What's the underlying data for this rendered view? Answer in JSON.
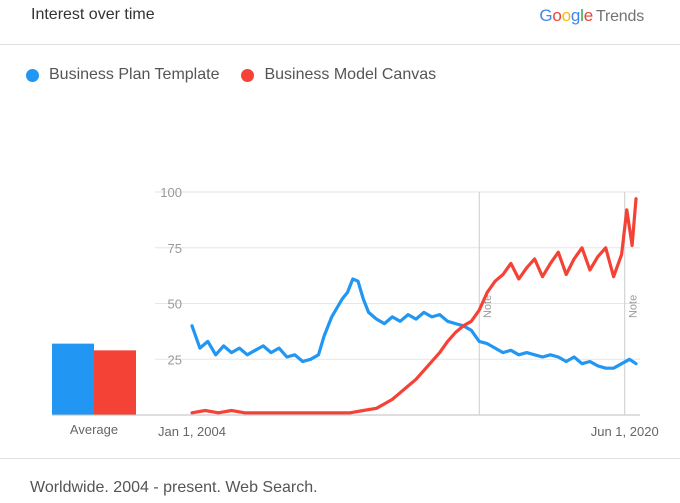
{
  "header": {
    "title": "Interest over time",
    "brand_google": "Google",
    "brand_trends": "Trends",
    "google_colors": [
      "#4285F4",
      "#EA4335",
      "#FBBC05",
      "#4285F4",
      "#34A853",
      "#EA4335"
    ]
  },
  "footer": {
    "text": "Worldwide. 2004 - present. Web Search."
  },
  "chart_data": {
    "type": "line",
    "title": "Interest over time",
    "ylim": [
      0,
      100
    ],
    "y_ticks": [
      25,
      50,
      75,
      100
    ],
    "x_tick_labels": [
      {
        "x": 2004.0,
        "label": "Jan 1, 2004"
      },
      {
        "x": 2020.42,
        "label": "Jun 1, 2020"
      }
    ],
    "xlim": [
      2004.0,
      2021.0
    ],
    "notes": [
      {
        "x": 2014.9,
        "label": "Note"
      },
      {
        "x": 2020.42,
        "label": "Note"
      }
    ],
    "grid": true,
    "legend_position": "top-left",
    "series": [
      {
        "name": "Business Plan Template",
        "color": "#2196F3",
        "points": [
          [
            2004.0,
            40
          ],
          [
            2004.3,
            30
          ],
          [
            2004.6,
            33
          ],
          [
            2004.9,
            27
          ],
          [
            2005.2,
            31
          ],
          [
            2005.5,
            28
          ],
          [
            2005.8,
            30
          ],
          [
            2006.1,
            27
          ],
          [
            2006.4,
            29
          ],
          [
            2006.7,
            31
          ],
          [
            2007.0,
            28
          ],
          [
            2007.3,
            30
          ],
          [
            2007.6,
            26
          ],
          [
            2007.9,
            27
          ],
          [
            2008.2,
            24
          ],
          [
            2008.5,
            25
          ],
          [
            2008.8,
            27
          ],
          [
            2009.0,
            35
          ],
          [
            2009.3,
            44
          ],
          [
            2009.5,
            48
          ],
          [
            2009.7,
            52
          ],
          [
            2009.9,
            55
          ],
          [
            2010.1,
            61
          ],
          [
            2010.3,
            60
          ],
          [
            2010.5,
            52
          ],
          [
            2010.7,
            46
          ],
          [
            2011.0,
            43
          ],
          [
            2011.3,
            41
          ],
          [
            2011.6,
            44
          ],
          [
            2011.9,
            42
          ],
          [
            2012.2,
            45
          ],
          [
            2012.5,
            43
          ],
          [
            2012.8,
            46
          ],
          [
            2013.1,
            44
          ],
          [
            2013.4,
            45
          ],
          [
            2013.7,
            42
          ],
          [
            2014.0,
            41
          ],
          [
            2014.3,
            40
          ],
          [
            2014.6,
            38
          ],
          [
            2014.9,
            33
          ],
          [
            2015.2,
            32
          ],
          [
            2015.5,
            30
          ],
          [
            2015.8,
            28
          ],
          [
            2016.1,
            29
          ],
          [
            2016.4,
            27
          ],
          [
            2016.7,
            28
          ],
          [
            2017.0,
            27
          ],
          [
            2017.3,
            26
          ],
          [
            2017.6,
            27
          ],
          [
            2017.9,
            26
          ],
          [
            2018.2,
            24
          ],
          [
            2018.5,
            26
          ],
          [
            2018.8,
            23
          ],
          [
            2019.1,
            24
          ],
          [
            2019.4,
            22
          ],
          [
            2019.7,
            21
          ],
          [
            2020.0,
            21
          ],
          [
            2020.3,
            23
          ],
          [
            2020.6,
            25
          ],
          [
            2020.85,
            23
          ]
        ]
      },
      {
        "name": "Business Model Canvas",
        "color": "#F44336",
        "points": [
          [
            2004.0,
            1
          ],
          [
            2004.5,
            2
          ],
          [
            2005.0,
            1
          ],
          [
            2005.5,
            2
          ],
          [
            2006.0,
            1
          ],
          [
            2006.5,
            1
          ],
          [
            2007.0,
            1
          ],
          [
            2007.5,
            1
          ],
          [
            2008.0,
            1
          ],
          [
            2008.5,
            1
          ],
          [
            2009.0,
            1
          ],
          [
            2009.5,
            1
          ],
          [
            2010.0,
            1
          ],
          [
            2010.5,
            2
          ],
          [
            2011.0,
            3
          ],
          [
            2011.3,
            5
          ],
          [
            2011.6,
            7
          ],
          [
            2011.9,
            10
          ],
          [
            2012.2,
            13
          ],
          [
            2012.5,
            16
          ],
          [
            2012.8,
            20
          ],
          [
            2013.1,
            24
          ],
          [
            2013.4,
            28
          ],
          [
            2013.7,
            33
          ],
          [
            2014.0,
            37
          ],
          [
            2014.3,
            40
          ],
          [
            2014.6,
            42
          ],
          [
            2014.9,
            47
          ],
          [
            2015.2,
            55
          ],
          [
            2015.5,
            60
          ],
          [
            2015.8,
            63
          ],
          [
            2016.1,
            68
          ],
          [
            2016.4,
            61
          ],
          [
            2016.7,
            66
          ],
          [
            2017.0,
            70
          ],
          [
            2017.3,
            62
          ],
          [
            2017.6,
            68
          ],
          [
            2017.9,
            73
          ],
          [
            2018.2,
            63
          ],
          [
            2018.5,
            70
          ],
          [
            2018.8,
            75
          ],
          [
            2019.1,
            65
          ],
          [
            2019.4,
            71
          ],
          [
            2019.7,
            75
          ],
          [
            2020.0,
            62
          ],
          [
            2020.3,
            72
          ],
          [
            2020.5,
            92
          ],
          [
            2020.7,
            76
          ],
          [
            2020.85,
            97
          ]
        ]
      }
    ],
    "averages": {
      "label": "Average",
      "values": [
        {
          "name": "Business Plan Template",
          "value": 32,
          "color": "#2196F3"
        },
        {
          "name": "Business Model Canvas",
          "value": 29,
          "color": "#F44336"
        }
      ]
    }
  }
}
